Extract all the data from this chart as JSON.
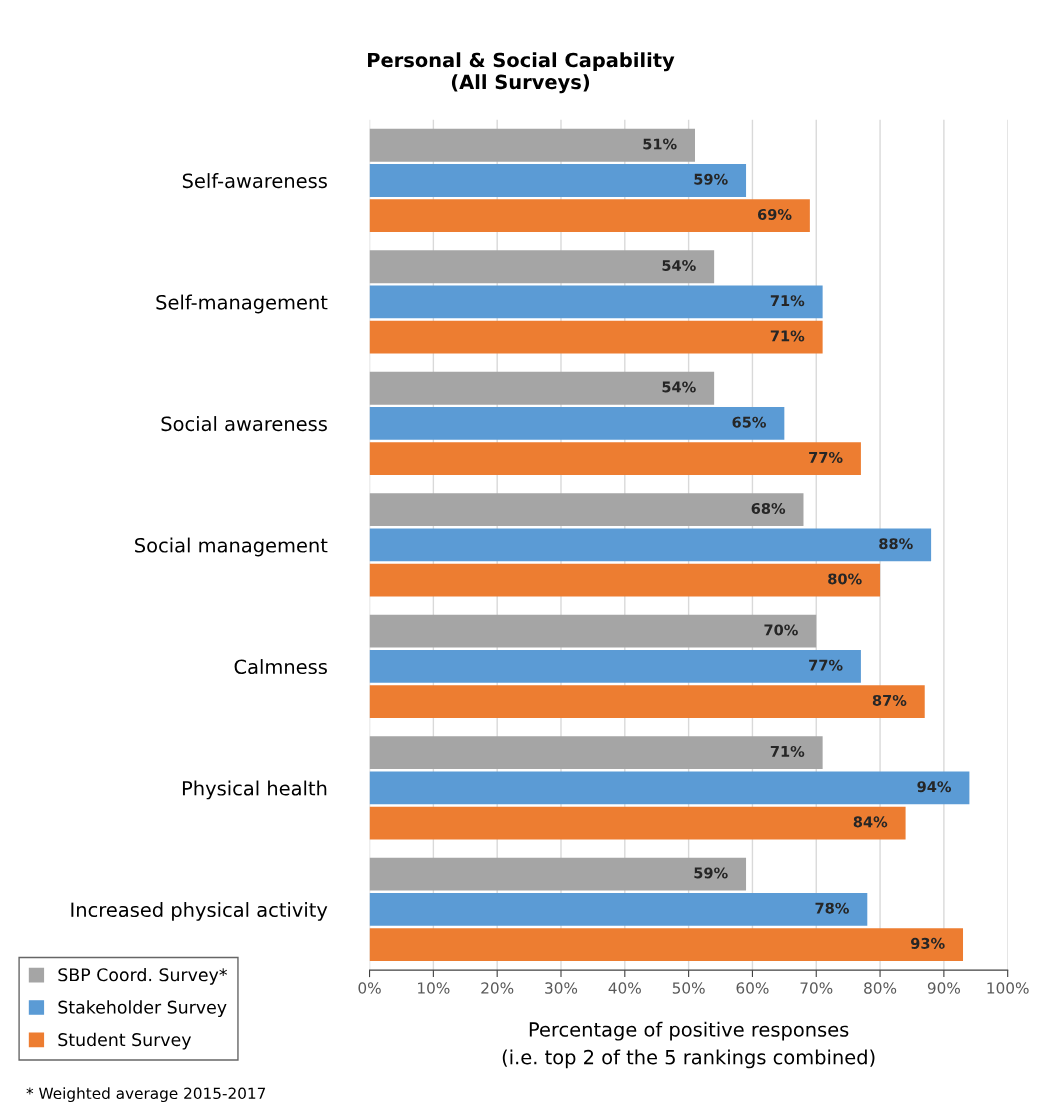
{
  "chart_data": {
    "type": "bar",
    "orientation": "horizontal",
    "title": "Personal & Social Capability\n(All Surveys)",
    "xlabel": "Percentage of positive responses\n(i.e. top 2 of the 5 rankings combined)",
    "categories": [
      "Self-awareness",
      "Self-management",
      "Social awareness",
      "Social management",
      "Calmness",
      "Physical health",
      "Increased physical activity"
    ],
    "series": [
      {
        "name": "SBP Coord. Survey*",
        "color": "#a5a5a5",
        "values": [
          51,
          54,
          54,
          68,
          70,
          71,
          59
        ],
        "value_labels": [
          "51%",
          "54%",
          "54%",
          "68%",
          "70%",
          "71%",
          "59%"
        ]
      },
      {
        "name": "Stakeholder Survey",
        "color": "#5b9bd5",
        "values": [
          59,
          71,
          65,
          88,
          77,
          94,
          78
        ],
        "value_labels": [
          "59%",
          "71%",
          "65%",
          "88%",
          "77%",
          "94%",
          "78%"
        ]
      },
      {
        "name": "Student Survey",
        "color": "#ed7d31",
        "values": [
          69,
          71,
          77,
          80,
          87,
          84,
          93
        ],
        "value_labels": [
          "69%",
          "71%",
          "77%",
          "80%",
          "87%",
          "84%",
          "93%"
        ]
      }
    ],
    "xlim": [
      0,
      100
    ],
    "xticks": [
      {
        "value": 0,
        "label": "0%"
      },
      {
        "value": 10,
        "label": "10%"
      },
      {
        "value": 20,
        "label": "20%"
      },
      {
        "value": 30,
        "label": "30%"
      },
      {
        "value": 40,
        "label": "40%"
      },
      {
        "value": 50,
        "label": "50%"
      },
      {
        "value": 60,
        "label": "60%"
      },
      {
        "value": 70,
        "label": "70%"
      },
      {
        "value": 80,
        "label": "80%"
      },
      {
        "value": 90,
        "label": "90%"
      },
      {
        "value": 100,
        "label": "100%"
      }
    ],
    "grid": "x",
    "legend": "bottom left",
    "annotations": [
      "* Weighted average 2015-2017"
    ]
  }
}
